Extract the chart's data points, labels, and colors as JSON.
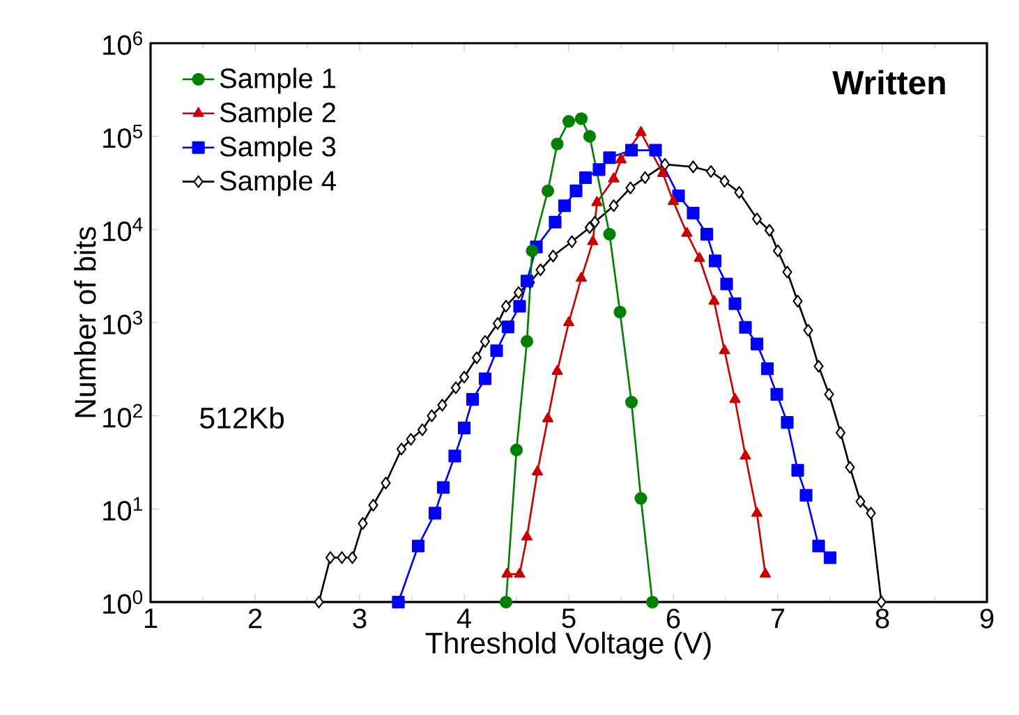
{
  "chart_data": {
    "type": "line",
    "xlabel": "Threshold Voltage (V)",
    "ylabel": "Number of bits",
    "annotations": [
      "**Written**",
      "512Kb"
    ],
    "log": "y",
    "legend": "top left",
    "xlim": [
      1,
      9
    ],
    "xticks": [
      1,
      2,
      3,
      4,
      5,
      6,
      7,
      8,
      9
    ],
    "ylim": [
      1,
      1000000
    ],
    "yticks": [
      {
        "value": 1,
        "label": "10$^{0}$"
      },
      {
        "value": 10,
        "label": "10$^{1}$"
      },
      {
        "value": 100,
        "label": "10$^{2}$"
      },
      {
        "value": 1000,
        "label": "10$^{3}$"
      },
      {
        "value": 10000,
        "label": "10$^{4}$"
      },
      {
        "value": 100000,
        "label": "10$^{5}$"
      },
      {
        "value": 1000000,
        "label": "10$^{6}$"
      }
    ],
    "series": [
      {
        "name": "Sample 1",
        "color": "#008000",
        "marker": "circle",
        "x": [
          4.4,
          4.5,
          4.6,
          4.65,
          4.8,
          4.89,
          5.0,
          5.12,
          5.2,
          5.39,
          5.49,
          5.6,
          5.69,
          5.8
        ],
        "values": [
          1,
          43,
          630,
          5900,
          26000,
          83000,
          145000,
          155000,
          100000,
          8900,
          1300,
          140,
          13,
          1
        ]
      },
      {
        "name": "Sample 2",
        "color": "#cc0000",
        "marker": "triangle",
        "x": [
          4.41,
          4.53,
          4.6,
          4.7,
          4.8,
          4.89,
          5.0,
          5.12,
          5.23,
          5.27,
          5.43,
          5.5,
          5.69,
          5.9,
          6.0,
          6.13,
          6.25,
          6.39,
          6.49,
          6.59,
          6.69,
          6.8,
          6.88
        ],
        "values": [
          2,
          2,
          5,
          25,
          93,
          300,
          1000,
          3000,
          7400,
          19500,
          35000,
          56000,
          110000,
          40000,
          20000,
          9100,
          4900,
          1700,
          500,
          150,
          37,
          9,
          2
        ]
      },
      {
        "name": "Sample 3",
        "color": "#0000ff",
        "marker": "square",
        "x": [
          3.37,
          3.56,
          3.72,
          3.8,
          3.91,
          4.0,
          4.08,
          4.2,
          4.31,
          4.42,
          4.53,
          4.6,
          4.69,
          4.87,
          4.96,
          5.07,
          5.16,
          5.29,
          5.39,
          5.6,
          5.83,
          6.05,
          6.19,
          6.32,
          6.4,
          6.51,
          6.59,
          6.69,
          6.8,
          6.9,
          6.99,
          7.09,
          7.19,
          7.27,
          7.39,
          7.5
        ],
        "values": [
          1,
          4,
          9,
          17,
          37,
          74,
          150,
          250,
          500,
          900,
          1500,
          2800,
          6500,
          12000,
          18000,
          26000,
          36000,
          44000,
          59000,
          71000,
          71000,
          23000,
          15000,
          8900,
          4600,
          2600,
          1600,
          890,
          590,
          320,
          170,
          85,
          26,
          14,
          4,
          3
        ]
      },
      {
        "name": "Sample 4",
        "color": "#000000",
        "marker": "diamond",
        "x": [
          2.61,
          2.72,
          2.83,
          2.93,
          3.03,
          3.13,
          3.25,
          3.4,
          3.49,
          3.6,
          3.69,
          3.79,
          3.92,
          4.0,
          4.12,
          4.2,
          4.32,
          4.4,
          4.52,
          4.63,
          4.73,
          4.85,
          5.03,
          5.2,
          5.25,
          5.43,
          5.59,
          5.73,
          5.92,
          6.19,
          6.36,
          6.49,
          6.63,
          6.8,
          6.92,
          7.0,
          7.09,
          7.19,
          7.29,
          7.39,
          7.49,
          7.6,
          7.69,
          7.79,
          7.89,
          7.99
        ],
        "values": [
          1,
          3,
          3,
          3,
          7,
          11,
          19,
          44,
          56,
          71,
          100,
          130,
          200,
          260,
          420,
          630,
          980,
          1500,
          2100,
          2700,
          3700,
          5200,
          7400,
          10500,
          12000,
          18000,
          28000,
          36000,
          50000,
          47000,
          42000,
          33000,
          25000,
          13000,
          9800,
          5900,
          3500,
          1700,
          830,
          340,
          170,
          66,
          28,
          12,
          9,
          1
        ]
      }
    ]
  }
}
